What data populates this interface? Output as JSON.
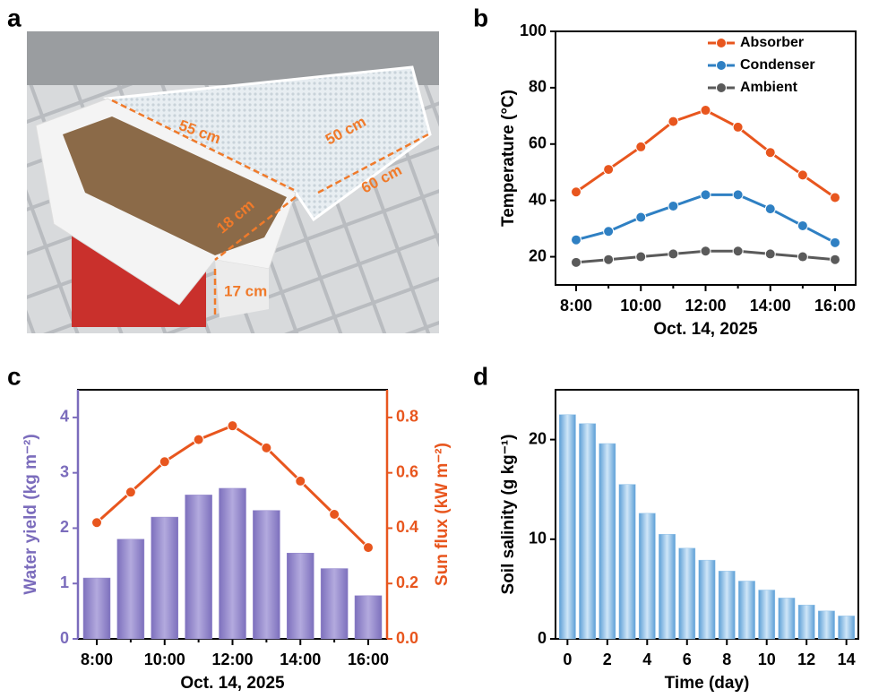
{
  "photo": {
    "panel": "a",
    "annotations": [
      "55 cm",
      "50 cm",
      "60 cm",
      "18 cm",
      "17 cm"
    ]
  },
  "chart_data": [
    {
      "panel": "b",
      "type": "line",
      "xlabel": "Oct. 14, 2025",
      "ylabel": "Temperature (°C)",
      "categories": [
        "8:00",
        null,
        "10:00",
        null,
        "12:00",
        null,
        "14:00",
        null,
        "16:00"
      ],
      "ylim": [
        10,
        100
      ],
      "yticks": [
        20,
        40,
        60,
        80,
        100
      ],
      "legend": "upper right",
      "series": [
        {
          "name": "Absorber",
          "color": "#e8561e",
          "values": [
            43,
            51,
            59,
            68,
            72,
            66,
            57,
            49,
            41
          ]
        },
        {
          "name": "Condenser",
          "color": "#2f80c3",
          "values": [
            26,
            29,
            34,
            38,
            42,
            42,
            37,
            31,
            25
          ]
        },
        {
          "name": "Ambient",
          "color": "#5a5a5a",
          "values": [
            18,
            19,
            20,
            21,
            22,
            22,
            21,
            20,
            19
          ]
        }
      ]
    },
    {
      "panel": "c",
      "type": "combo",
      "xlabel": "Oct. 14, 2025",
      "ylabel": "Water yield (kg m⁻²)",
      "y2label": "Sun flux (kW m⁻²)",
      "categories": [
        "8:00",
        null,
        "10:00",
        null,
        "12:00",
        null,
        "14:00",
        null,
        "16:00"
      ],
      "ylim": [
        0,
        4.5
      ],
      "yticks": [
        0,
        1,
        2,
        3,
        4
      ],
      "y2lim": [
        0,
        0.9
      ],
      "y2ticks": [
        {
          "value": 0,
          "label": "0.0"
        },
        0.2,
        0.4,
        0.6,
        0.8
      ],
      "series": [
        {
          "type": "bar",
          "color": "#9488cc",
          "values": [
            1.1,
            1.8,
            2.2,
            2.6,
            2.72,
            2.32,
            1.55,
            1.27,
            0.78
          ]
        },
        {
          "type": "line",
          "axis": "y2",
          "color": "#e8561e",
          "values": [
            0.42,
            0.53,
            0.64,
            0.72,
            0.77,
            0.69,
            0.57,
            0.45,
            0.33
          ]
        }
      ]
    },
    {
      "panel": "d",
      "type": "bar",
      "xlabel": "Time (day)",
      "ylabel": "Soil salinity (g kg⁻¹)",
      "x": [
        0,
        1,
        2,
        3,
        4,
        5,
        6,
        7,
        8,
        9,
        10,
        11,
        12,
        13,
        14
      ],
      "xlim": [
        -0.6,
        14.6
      ],
      "xticks": [
        0,
        2,
        4,
        6,
        8,
        10,
        12,
        14
      ],
      "ylim": [
        0,
        25
      ],
      "yticks": [
        0,
        10,
        20
      ],
      "color": "#8fc0e8",
      "values": [
        22.5,
        21.6,
        19.6,
        15.5,
        12.6,
        10.5,
        9.1,
        7.9,
        6.8,
        5.8,
        4.9,
        4.1,
        3.4,
        2.8,
        2.3
      ]
    }
  ]
}
